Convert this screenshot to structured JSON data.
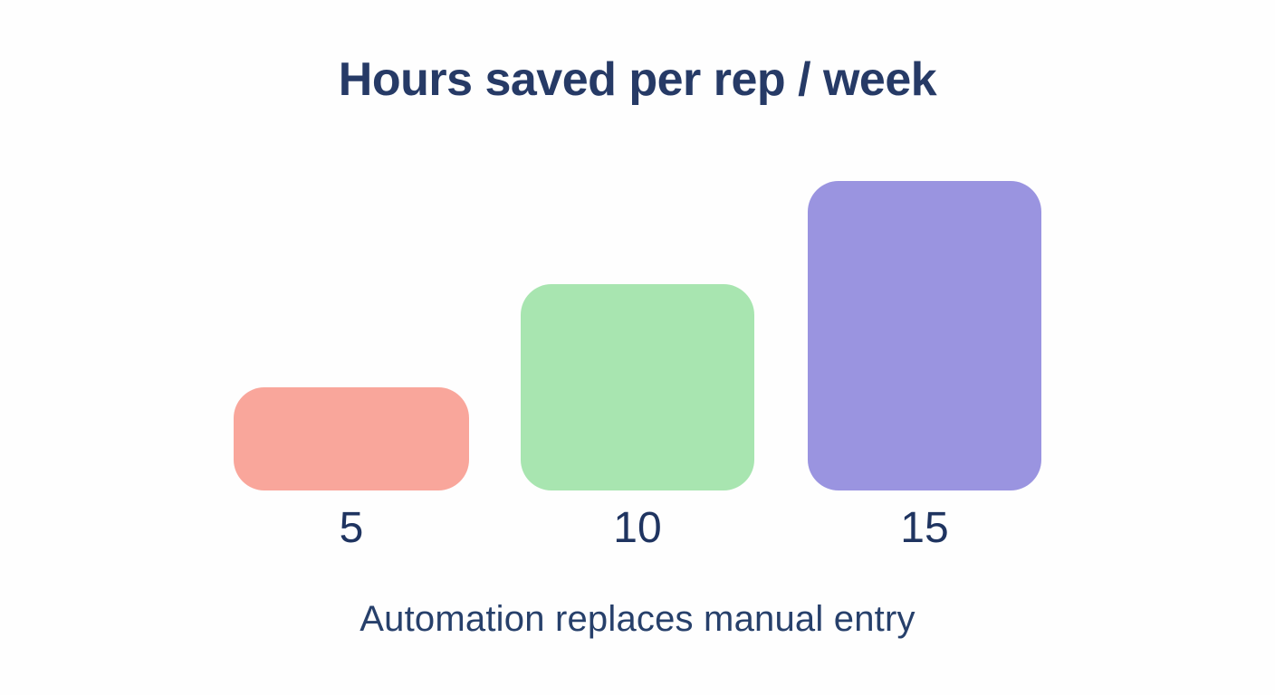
{
  "title": "Hours saved per rep / week",
  "caption": "Automation replaces manual entry",
  "colors": {
    "background": "#fefefe",
    "title_text": "#263a66",
    "label_text": "#1f3460",
    "caption_text": "#27406b",
    "bar_salmon": "#f9a69b",
    "bar_green": "#a8e5b0",
    "bar_purple": "#9a94e0"
  },
  "chart_data": {
    "type": "bar",
    "title": "Hours saved per rep / week",
    "categories": [
      "5",
      "10",
      "15"
    ],
    "values": [
      5,
      10,
      15
    ],
    "bar_colors": [
      "#f9a69b",
      "#a8e5b0",
      "#9a94e0"
    ],
    "xlabel": "",
    "ylabel": "",
    "ylim": [
      0,
      15
    ],
    "grid": false,
    "legend": false,
    "axes_visible": false,
    "annotation": "Automation replaces manual entry"
  }
}
